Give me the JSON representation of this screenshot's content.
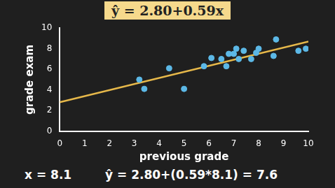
{
  "chart_data": {
    "type": "scatter",
    "title": "ŷ = 2.80+0.59x",
    "x_label": "previous grade",
    "y_label": "grade exam",
    "series": [
      {
        "type": "scatter",
        "color": "#5cb8e6",
        "x": [
          3.2,
          3.4,
          4.4,
          5.0,
          5.8,
          6.1,
          6.5,
          6.7,
          6.8,
          7.0,
          7.1,
          7.2,
          7.4,
          7.7,
          7.9,
          8.0,
          8.6,
          8.7,
          9.6,
          9.9
        ],
        "values": [
          5.0,
          4.1,
          6.1,
          4.1,
          6.3,
          7.1,
          7.0,
          6.3,
          7.5,
          7.5,
          8.0,
          7.0,
          7.8,
          7.0,
          7.6,
          8.0,
          7.3,
          8.9,
          7.8,
          8.0
        ]
      },
      {
        "type": "line",
        "color": "#e6b84a",
        "x": [
          0,
          10
        ],
        "values": [
          2.8,
          8.7
        ]
      }
    ],
    "xlim": [
      0,
      10
    ],
    "ylim": [
      0,
      10
    ],
    "xticks": [
      0,
      1,
      2,
      3,
      4,
      5,
      6,
      7,
      8,
      9,
      10
    ],
    "yticks": [
      0,
      2,
      4,
      6,
      8,
      10
    ],
    "grid": false,
    "annotations": [
      "x = 8.1",
      "ŷ = 2.80+(0.59*8.1) = 7.6"
    ]
  }
}
